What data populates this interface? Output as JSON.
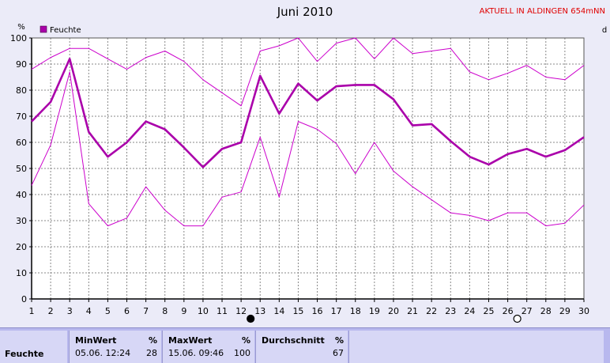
{
  "header": {
    "title": "Juni 2010",
    "station": "AKTUELL IN ALDINGEN 654mNN"
  },
  "chart_data": {
    "type": "line",
    "title": "Juni 2010",
    "ylabel": "%",
    "right_axis_label": "d",
    "ylim": [
      0,
      100
    ],
    "yticks": [
      0,
      10,
      20,
      30,
      40,
      50,
      60,
      70,
      80,
      90,
      100
    ],
    "x": [
      1,
      2,
      3,
      4,
      5,
      6,
      7,
      8,
      9,
      10,
      11,
      12,
      13,
      14,
      15,
      16,
      17,
      18,
      19,
      20,
      21,
      22,
      23,
      24,
      25,
      26,
      27,
      28,
      29,
      30
    ],
    "grid": true,
    "legend": "top-left",
    "series": [
      {
        "name": "Feuchte",
        "role": "mean",
        "color": "#aa00aa",
        "values": [
          68,
          75.5,
          92,
          64,
          54.5,
          60,
          68,
          65,
          58,
          50.5,
          57.5,
          60,
          85.5,
          71,
          82.5,
          76,
          81.5,
          82,
          82,
          76.5,
          66.5,
          67,
          60.5,
          54.5,
          51.5,
          55.5,
          57.5,
          54.5,
          57,
          62
        ]
      },
      {
        "role": "max",
        "color": "#cc00cc",
        "values": [
          88,
          92.5,
          96,
          96,
          92,
          88,
          92.5,
          95,
          91,
          84,
          79,
          74,
          95,
          97,
          100,
          91,
          98,
          100,
          92,
          100,
          94,
          95,
          96,
          87,
          84,
          86.5,
          89.5,
          85,
          84,
          89.5
        ]
      },
      {
        "role": "min",
        "color": "#cc00cc",
        "values": [
          43.5,
          59,
          87,
          36.5,
          28,
          31,
          43,
          34,
          28,
          28,
          39,
          41,
          62,
          39,
          68,
          65,
          59.5,
          48,
          60,
          49,
          43,
          38,
          33,
          32,
          30,
          33,
          33,
          28,
          29,
          36
        ]
      }
    ],
    "moon_phases": [
      {
        "day": 12.5,
        "phase": "new"
      },
      {
        "day": 26.5,
        "phase": "full"
      }
    ]
  },
  "stats": {
    "row_label": "Feuchte",
    "min": {
      "label": "MinWert",
      "unit": "%",
      "datetime": "05.06.  12:24",
      "value": "28"
    },
    "max": {
      "label": "MaxWert",
      "unit": "%",
      "datetime": "15.06.  09:46",
      "value": "100"
    },
    "avg": {
      "label": "Durchschnitt",
      "unit": "%",
      "value": "67"
    }
  },
  "colors": {
    "background": "#ebebf8",
    "plot_background": "#ffffff",
    "grid": "#888888",
    "mean_line": "#aa00aa",
    "minmax_line": "#cc00cc",
    "station_text": "#e00000"
  }
}
